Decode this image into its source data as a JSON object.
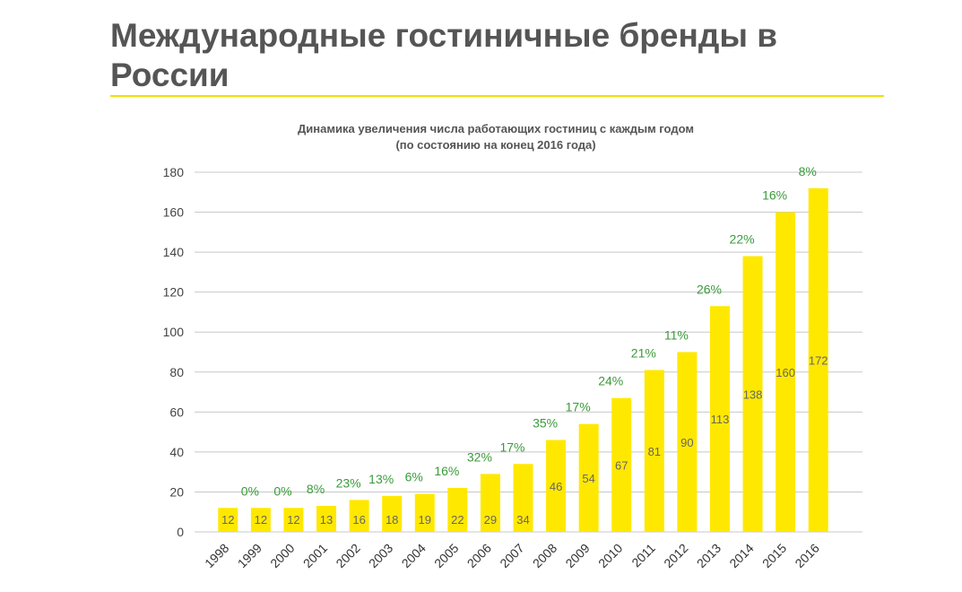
{
  "page": {
    "title": "Международные гостиничные бренды в России"
  },
  "colors": {
    "title": "#555555",
    "rule": "#f0e000",
    "bar": "#ffe800",
    "grid": "#c8c8c8",
    "growth_label": "#3a9a3a",
    "value_label": "#666666"
  },
  "chart_data": {
    "type": "bar",
    "title": "Динамика увеличения числа работающих гостиниц с каждым годом",
    "subtitle": "(по состоянию на конец 2016 года)",
    "xlabel": "",
    "ylabel": "",
    "ylim": [
      0,
      180
    ],
    "yticks": [
      0,
      20,
      40,
      60,
      80,
      100,
      120,
      140,
      160,
      180
    ],
    "grid": true,
    "categories": [
      "1998",
      "1999",
      "2000",
      "2001",
      "2002",
      "2003",
      "2004",
      "2005",
      "2006",
      "2007",
      "2008",
      "2009",
      "2010",
      "2011",
      "2012",
      "2013",
      "2014",
      "2015",
      "2016"
    ],
    "values": [
      12,
      12,
      12,
      13,
      16,
      18,
      19,
      22,
      29,
      34,
      46,
      54,
      67,
      81,
      90,
      113,
      138,
      160,
      172
    ],
    "growth_labels": [
      "",
      "0%",
      "0%",
      "8%",
      "23%",
      "13%",
      "6%",
      "16%",
      "32%",
      "17%",
      "35%",
      "17%",
      "24%",
      "21%",
      "11%",
      "26%",
      "22%",
      "16%",
      "8%"
    ]
  }
}
